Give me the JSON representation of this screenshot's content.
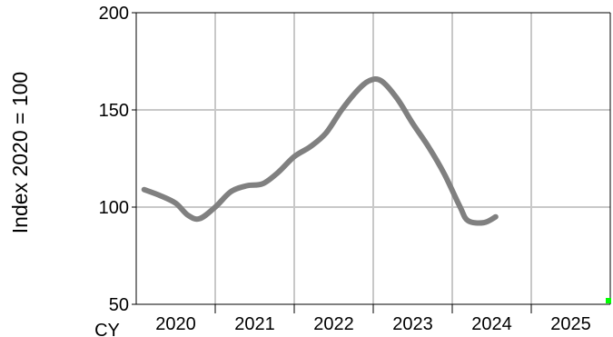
{
  "chart_data": {
    "type": "line",
    "title": "",
    "xlabel": "CY",
    "ylabel": "Index 2020 = 100",
    "ylim": [
      50,
      200
    ],
    "yticks": [
      "50",
      "100",
      "150",
      "200"
    ],
    "categories": [
      "2020",
      "2021",
      "2022",
      "2023",
      "2024",
      "2025"
    ],
    "xlim": [
      2019.9,
      2025.9
    ],
    "grid": true,
    "legend": "none",
    "series": [
      {
        "color": "#808080",
        "x": [
          2020.0,
          2020.2,
          2020.4,
          2020.55,
          2020.7,
          2020.9,
          2021.1,
          2021.3,
          2021.5,
          2021.7,
          2021.9,
          2022.1,
          2022.3,
          2022.5,
          2022.7,
          2022.85,
          2023.0,
          2023.2,
          2023.4,
          2023.6,
          2023.8,
          2024.0,
          2024.1,
          2024.3,
          2024.45
        ],
        "values": [
          109,
          106,
          102,
          96,
          94,
          100,
          108,
          111,
          112,
          118,
          126,
          131,
          138,
          150,
          160,
          165,
          165,
          156,
          143,
          131,
          117,
          100,
          93,
          92,
          95
        ]
      }
    ],
    "marker": {
      "x": 2025.9,
      "y": 50,
      "color": "#00ff00"
    }
  }
}
